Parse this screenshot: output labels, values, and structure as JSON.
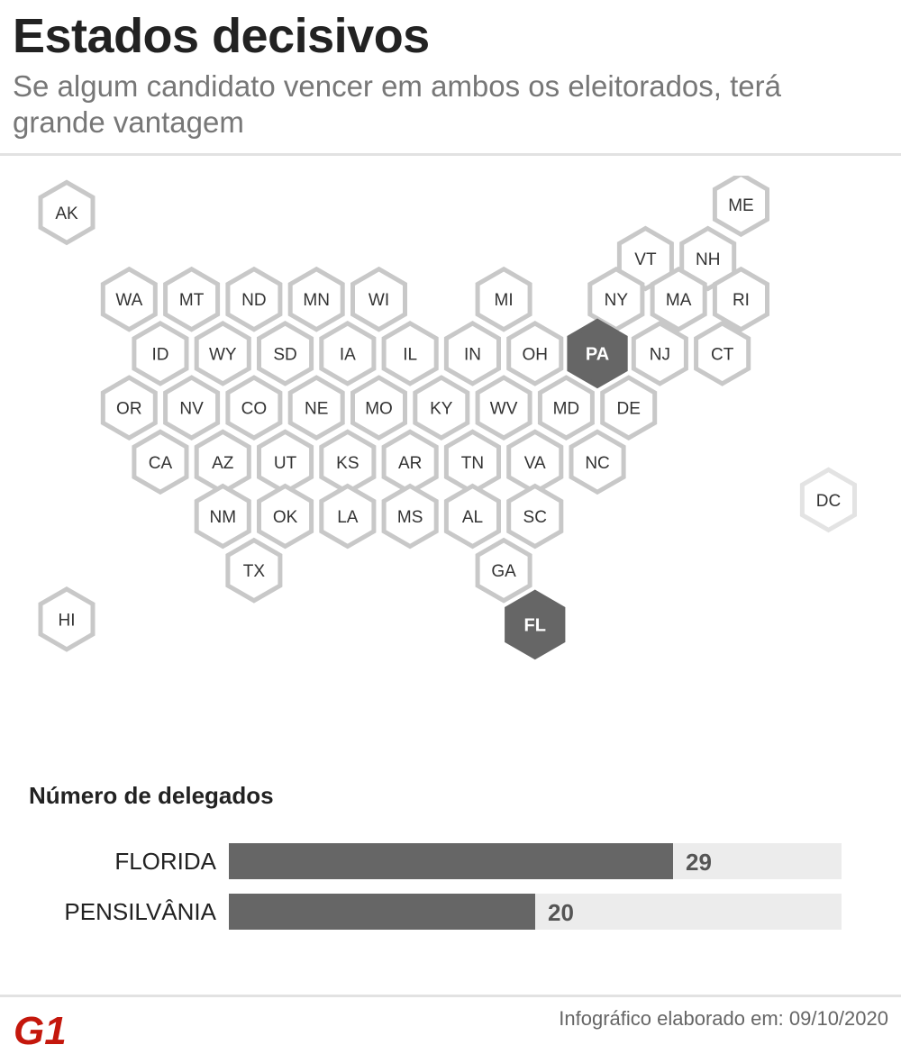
{
  "header": {
    "title": "Estados decisivos",
    "subtitle": "Se algum candidato vencer em ambos os eleitorados, terá grande vantagem"
  },
  "map": {
    "states": [
      {
        "code": "AK",
        "col": 0,
        "row": -0.6,
        "style": "normal"
      },
      {
        "code": "ME",
        "col": 10.8,
        "row": -0.75,
        "style": "normal"
      },
      {
        "code": "VT",
        "col": 9.27,
        "row": 0.25,
        "style": "normal"
      },
      {
        "code": "NH",
        "col": 10.27,
        "row": 0.25,
        "style": "normal"
      },
      {
        "code": "WA",
        "col": 1,
        "row": 1,
        "style": "normal"
      },
      {
        "code": "MT",
        "col": 2,
        "row": 1,
        "style": "normal"
      },
      {
        "code": "ND",
        "col": 3,
        "row": 1,
        "style": "normal"
      },
      {
        "code": "MN",
        "col": 4,
        "row": 1,
        "style": "normal"
      },
      {
        "code": "WI",
        "col": 5,
        "row": 1,
        "style": "normal"
      },
      {
        "code": "MI",
        "col": 7,
        "row": 1,
        "style": "normal"
      },
      {
        "code": "NY",
        "col": 8.8,
        "row": 1,
        "style": "normal"
      },
      {
        "code": "MA",
        "col": 9.8,
        "row": 1,
        "style": "normal"
      },
      {
        "code": "RI",
        "col": 10.8,
        "row": 1,
        "style": "normal"
      },
      {
        "code": "ID",
        "col": 1.5,
        "row": 2,
        "style": "normal"
      },
      {
        "code": "WY",
        "col": 2.5,
        "row": 2,
        "style": "normal"
      },
      {
        "code": "SD",
        "col": 3.5,
        "row": 2,
        "style": "normal"
      },
      {
        "code": "IA",
        "col": 4.5,
        "row": 2,
        "style": "normal"
      },
      {
        "code": "IL",
        "col": 5.5,
        "row": 2,
        "style": "normal"
      },
      {
        "code": "IN",
        "col": 6.5,
        "row": 2,
        "style": "normal"
      },
      {
        "code": "OH",
        "col": 7.5,
        "row": 2,
        "style": "normal"
      },
      {
        "code": "PA",
        "col": 8.5,
        "row": 2,
        "style": "highlight"
      },
      {
        "code": "NJ",
        "col": 9.5,
        "row": 2,
        "style": "normal"
      },
      {
        "code": "CT",
        "col": 10.5,
        "row": 2,
        "style": "normal"
      },
      {
        "code": "OR",
        "col": 1,
        "row": 3,
        "style": "normal"
      },
      {
        "code": "NV",
        "col": 2,
        "row": 3,
        "style": "normal"
      },
      {
        "code": "CO",
        "col": 3,
        "row": 3,
        "style": "normal"
      },
      {
        "code": "NE",
        "col": 4,
        "row": 3,
        "style": "normal"
      },
      {
        "code": "MO",
        "col": 5,
        "row": 3,
        "style": "normal"
      },
      {
        "code": "KY",
        "col": 6,
        "row": 3,
        "style": "normal"
      },
      {
        "code": "WV",
        "col": 7,
        "row": 3,
        "style": "normal"
      },
      {
        "code": "MD",
        "col": 8,
        "row": 3,
        "style": "normal"
      },
      {
        "code": "DE",
        "col": 9,
        "row": 3,
        "style": "normal"
      },
      {
        "code": "CA",
        "col": 1.5,
        "row": 4,
        "style": "normal"
      },
      {
        "code": "AZ",
        "col": 2.5,
        "row": 4,
        "style": "normal"
      },
      {
        "code": "UT",
        "col": 3.5,
        "row": 4,
        "style": "normal"
      },
      {
        "code": "KS",
        "col": 4.5,
        "row": 4,
        "style": "normal"
      },
      {
        "code": "AR",
        "col": 5.5,
        "row": 4,
        "style": "normal"
      },
      {
        "code": "TN",
        "col": 6.5,
        "row": 4,
        "style": "normal"
      },
      {
        "code": "VA",
        "col": 7.5,
        "row": 4,
        "style": "normal"
      },
      {
        "code": "NC",
        "col": 8.5,
        "row": 4,
        "style": "normal"
      },
      {
        "code": "DC",
        "col": 12.2,
        "row": 4.7,
        "style": "faint"
      },
      {
        "code": "NM",
        "col": 2.5,
        "row": 5,
        "style": "normal"
      },
      {
        "code": "OK",
        "col": 3.5,
        "row": 5,
        "style": "normal"
      },
      {
        "code": "LA",
        "col": 4.5,
        "row": 5,
        "style": "normal"
      },
      {
        "code": "MS",
        "col": 5.5,
        "row": 5,
        "style": "normal"
      },
      {
        "code": "AL",
        "col": 6.5,
        "row": 5,
        "style": "normal"
      },
      {
        "code": "SC",
        "col": 7.5,
        "row": 5,
        "style": "normal"
      },
      {
        "code": "TX",
        "col": 3,
        "row": 6,
        "style": "normal"
      },
      {
        "code": "GA",
        "col": 7,
        "row": 6,
        "style": "normal"
      },
      {
        "code": "HI",
        "col": 0,
        "row": 6.9,
        "style": "normal"
      },
      {
        "code": "FL",
        "col": 7.5,
        "row": 7,
        "style": "highlight"
      }
    ],
    "colors": {
      "stroke": "#c8c8c8",
      "faint_stroke": "#e3e3e3",
      "fill": "#ffffff",
      "highlight": "#666666",
      "text": "#333333",
      "highlight_text": "#ffffff"
    }
  },
  "chart_data": {
    "type": "bar",
    "orientation": "horizontal",
    "title": "Número de delegados",
    "categories": [
      "FLORIDA",
      "PENSILVÂNIA"
    ],
    "values": [
      29,
      20
    ],
    "xlim": [
      0,
      40
    ],
    "colors": {
      "bar": "#666666",
      "track": "#ececec"
    }
  },
  "footer": {
    "brand": "G1",
    "brand_color": "#c4170c",
    "note": "Infográfico elaborado em: 09/10/2020"
  }
}
